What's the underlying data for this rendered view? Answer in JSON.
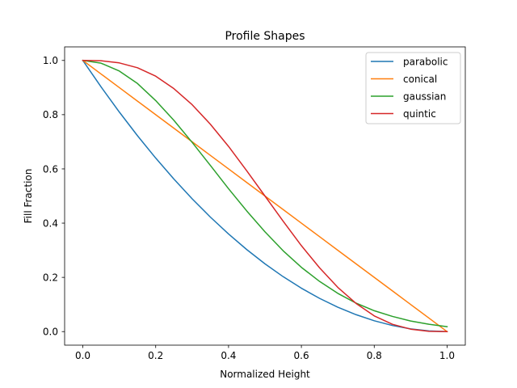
{
  "chart_data": {
    "type": "line",
    "title": "Profile Shapes",
    "xlabel": "Normalized Height",
    "ylabel": "Fill Fraction",
    "xlim": [
      -0.05,
      1.05
    ],
    "ylim": [
      -0.05,
      1.05
    ],
    "xticks": [
      0.0,
      0.2,
      0.4,
      0.6,
      0.8,
      1.0
    ],
    "yticks": [
      0.0,
      0.2,
      0.4,
      0.6,
      0.8,
      1.0
    ],
    "xtick_labels": [
      "0.0",
      "0.2",
      "0.4",
      "0.6",
      "0.8",
      "1.0"
    ],
    "ytick_labels": [
      "0.0",
      "0.2",
      "0.4",
      "0.6",
      "0.8",
      "1.0"
    ],
    "grid": false,
    "legend_position": "top-right",
    "x": [
      0.0,
      0.05,
      0.1,
      0.15,
      0.2,
      0.25,
      0.3,
      0.35,
      0.4,
      0.45,
      0.5,
      0.55,
      0.6,
      0.65,
      0.7,
      0.75,
      0.8,
      0.85,
      0.9,
      0.95,
      1.0
    ],
    "series": [
      {
        "name": "parabolic",
        "color": "#1f77b4",
        "values": [
          1.0,
          0.9025,
          0.81,
          0.7225,
          0.64,
          0.5625,
          0.49,
          0.4225,
          0.36,
          0.3025,
          0.25,
          0.2025,
          0.16,
          0.1225,
          0.09,
          0.0625,
          0.04,
          0.0225,
          0.01,
          0.0025,
          0.0
        ]
      },
      {
        "name": "conical",
        "color": "#ff7f0e",
        "values": [
          1.0,
          0.95,
          0.9,
          0.85,
          0.8,
          0.75,
          0.7,
          0.65,
          0.6,
          0.55,
          0.5,
          0.45,
          0.4,
          0.35,
          0.3,
          0.25,
          0.2,
          0.15,
          0.1,
          0.05,
          0.0
        ]
      },
      {
        "name": "gaussian",
        "color": "#2ca02c",
        "values": [
          1.0,
          0.99,
          0.961,
          0.915,
          0.852,
          0.779,
          0.698,
          0.613,
          0.527,
          0.445,
          0.368,
          0.298,
          0.237,
          0.185,
          0.141,
          0.105,
          0.077,
          0.056,
          0.039,
          0.027,
          0.018
        ]
      },
      {
        "name": "quintic",
        "color": "#d62728",
        "values": [
          1.0,
          0.999,
          0.991,
          0.973,
          0.942,
          0.896,
          0.837,
          0.765,
          0.683,
          0.593,
          0.5,
          0.407,
          0.317,
          0.235,
          0.163,
          0.104,
          0.058,
          0.027,
          0.009,
          0.001,
          0.0
        ]
      }
    ]
  }
}
